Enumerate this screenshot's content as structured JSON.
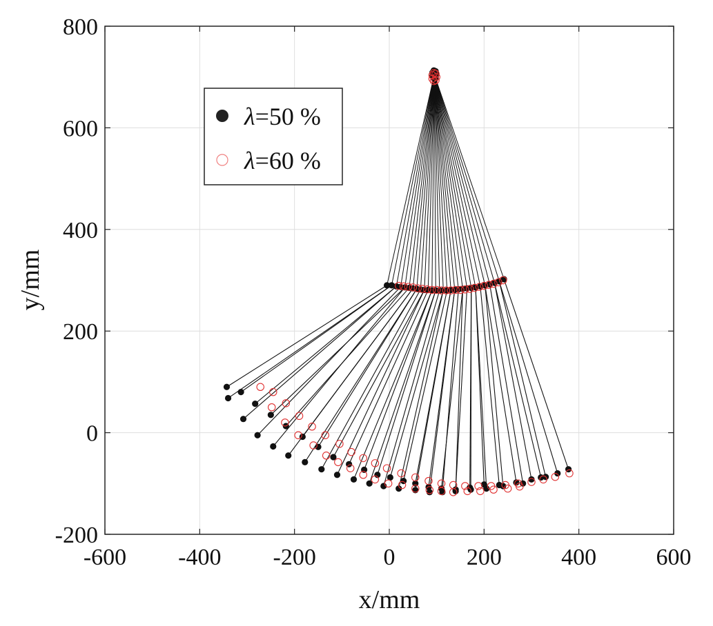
{
  "chart_data": {
    "type": "scatter",
    "xlabel": "x/mm",
    "ylabel": "y/mm",
    "xlim": [
      -600,
      600
    ],
    "ylim": [
      -200,
      800
    ],
    "xticks": [
      -600,
      -400,
      -200,
      0,
      200,
      400,
      600
    ],
    "yticks": [
      -200,
      0,
      200,
      400,
      600,
      800
    ],
    "xtick_labels": [
      "-600",
      "-400",
      "-200",
      "0",
      "200",
      "400",
      "600"
    ],
    "ytick_labels": [
      "-200",
      "0",
      "200",
      "400",
      "600",
      "800"
    ],
    "grid": true,
    "legend": {
      "placement": "upper-left",
      "entries": [
        {
          "symbol": "λ",
          "text": "=50 %"
        },
        {
          "symbol": "λ",
          "text": "=60 %"
        }
      ]
    },
    "series": [
      {
        "name": "λ=50 %",
        "color": "#111111",
        "marker": "filled-circle",
        "hip": {
          "x": 95,
          "y": 705
        },
        "knee": [
          {
            "x": -5,
            "y": 290
          },
          {
            "x": 5,
            "y": 290
          },
          {
            "x": 15,
            "y": 288
          },
          {
            "x": 24,
            "y": 287
          },
          {
            "x": 33,
            "y": 286
          },
          {
            "x": 42,
            "y": 285
          },
          {
            "x": 50,
            "y": 284
          },
          {
            "x": 58,
            "y": 283
          },
          {
            "x": 66,
            "y": 282
          },
          {
            "x": 74,
            "y": 281
          },
          {
            "x": 82,
            "y": 281
          },
          {
            "x": 90,
            "y": 280
          },
          {
            "x": 98,
            "y": 280
          },
          {
            "x": 106,
            "y": 280
          },
          {
            "x": 114,
            "y": 280
          },
          {
            "x": 122,
            "y": 280
          },
          {
            "x": 130,
            "y": 281
          },
          {
            "x": 138,
            "y": 281
          },
          {
            "x": 146,
            "y": 282
          },
          {
            "x": 155,
            "y": 283
          },
          {
            "x": 164,
            "y": 284
          },
          {
            "x": 173,
            "y": 285
          },
          {
            "x": 182,
            "y": 286
          },
          {
            "x": 192,
            "y": 288
          },
          {
            "x": 202,
            "y": 290
          },
          {
            "x": 212,
            "y": 292
          },
          {
            "x": 222,
            "y": 295
          },
          {
            "x": 232,
            "y": 298
          },
          {
            "x": 242,
            "y": 302
          }
        ],
        "foot": [
          {
            "x": -343,
            "y": 90
          },
          {
            "x": -340,
            "y": 68
          },
          {
            "x": -313,
            "y": 80
          },
          {
            "x": -308,
            "y": 27
          },
          {
            "x": -283,
            "y": 57
          },
          {
            "x": -278,
            "y": -5
          },
          {
            "x": -250,
            "y": 35
          },
          {
            "x": -245,
            "y": -27
          },
          {
            "x": -218,
            "y": 13
          },
          {
            "x": -213,
            "y": -45
          },
          {
            "x": -183,
            "y": -8
          },
          {
            "x": -178,
            "y": -58
          },
          {
            "x": -150,
            "y": -28
          },
          {
            "x": -143,
            "y": -72
          },
          {
            "x": -118,
            "y": -48
          },
          {
            "x": -110,
            "y": -83
          },
          {
            "x": -85,
            "y": -62
          },
          {
            "x": -75,
            "y": -92
          },
          {
            "x": -53,
            "y": -73
          },
          {
            "x": -42,
            "y": -100
          },
          {
            "x": -25,
            "y": -83
          },
          {
            "x": -12,
            "y": -105
          },
          {
            "x": 2,
            "y": -88
          },
          {
            "x": 20,
            "y": -110
          },
          {
            "x": 30,
            "y": -95
          },
          {
            "x": 55,
            "y": -113
          },
          {
            "x": 55,
            "y": -100
          },
          {
            "x": 85,
            "y": -117
          },
          {
            "x": 83,
            "y": -107
          },
          {
            "x": 112,
            "y": -117
          },
          {
            "x": 110,
            "y": -110
          },
          {
            "x": 140,
            "y": -115
          },
          {
            "x": 140,
            "y": -112
          },
          {
            "x": 170,
            "y": -108
          },
          {
            "x": 172,
            "y": -112
          },
          {
            "x": 200,
            "y": -102
          },
          {
            "x": 205,
            "y": -110
          },
          {
            "x": 232,
            "y": -103
          },
          {
            "x": 240,
            "y": -105
          },
          {
            "x": 268,
            "y": -98
          },
          {
            "x": 282,
            "y": -100
          },
          {
            "x": 300,
            "y": -92
          },
          {
            "x": 320,
            "y": -88
          },
          {
            "x": 330,
            "y": -87
          },
          {
            "x": 355,
            "y": -80
          },
          {
            "x": 378,
            "y": -72
          }
        ]
      },
      {
        "name": "λ=60 %",
        "color": "#e03030",
        "marker": "open-circle",
        "hip": {
          "x": 95,
          "y": 700
        },
        "knee": [
          {
            "x": 20,
            "y": 289
          },
          {
            "x": 30,
            "y": 288
          },
          {
            "x": 40,
            "y": 287
          },
          {
            "x": 50,
            "y": 286
          },
          {
            "x": 60,
            "y": 284
          },
          {
            "x": 70,
            "y": 283
          },
          {
            "x": 80,
            "y": 282
          },
          {
            "x": 90,
            "y": 281
          },
          {
            "x": 100,
            "y": 281
          },
          {
            "x": 110,
            "y": 280
          },
          {
            "x": 120,
            "y": 280
          },
          {
            "x": 130,
            "y": 280
          },
          {
            "x": 140,
            "y": 281
          },
          {
            "x": 150,
            "y": 281
          },
          {
            "x": 160,
            "y": 282
          },
          {
            "x": 170,
            "y": 283
          },
          {
            "x": 180,
            "y": 285
          },
          {
            "x": 190,
            "y": 287
          },
          {
            "x": 200,
            "y": 289
          },
          {
            "x": 210,
            "y": 291
          },
          {
            "x": 220,
            "y": 293
          },
          {
            "x": 230,
            "y": 296
          },
          {
            "x": 240,
            "y": 300
          }
        ],
        "foot": [
          {
            "x": -272,
            "y": 90
          },
          {
            "x": -245,
            "y": 80
          },
          {
            "x": -248,
            "y": 50
          },
          {
            "x": -218,
            "y": 58
          },
          {
            "x": -220,
            "y": 20
          },
          {
            "x": -190,
            "y": 33
          },
          {
            "x": -192,
            "y": -5
          },
          {
            "x": -163,
            "y": 12
          },
          {
            "x": -160,
            "y": -25
          },
          {
            "x": -135,
            "y": -5
          },
          {
            "x": -133,
            "y": -45
          },
          {
            "x": -105,
            "y": -22
          },
          {
            "x": -108,
            "y": -58
          },
          {
            "x": -80,
            "y": -38
          },
          {
            "x": -82,
            "y": -70
          },
          {
            "x": -55,
            "y": -50
          },
          {
            "x": -55,
            "y": -83
          },
          {
            "x": -30,
            "y": -60
          },
          {
            "x": -30,
            "y": -92
          },
          {
            "x": -5,
            "y": -70
          },
          {
            "x": -2,
            "y": -100
          },
          {
            "x": 25,
            "y": -80
          },
          {
            "x": 27,
            "y": -103
          },
          {
            "x": 55,
            "y": -88
          },
          {
            "x": 55,
            "y": -110
          },
          {
            "x": 83,
            "y": -95
          },
          {
            "x": 85,
            "y": -113
          },
          {
            "x": 110,
            "y": -100
          },
          {
            "x": 110,
            "y": -115
          },
          {
            "x": 135,
            "y": -103
          },
          {
            "x": 135,
            "y": -117
          },
          {
            "x": 160,
            "y": -105
          },
          {
            "x": 165,
            "y": -115
          },
          {
            "x": 188,
            "y": -105
          },
          {
            "x": 192,
            "y": -115
          },
          {
            "x": 215,
            "y": -105
          },
          {
            "x": 220,
            "y": -112
          },
          {
            "x": 245,
            "y": -103
          },
          {
            "x": 250,
            "y": -110
          },
          {
            "x": 272,
            "y": -100
          },
          {
            "x": 275,
            "y": -106
          },
          {
            "x": 300,
            "y": -97
          },
          {
            "x": 325,
            "y": -92
          },
          {
            "x": 350,
            "y": -87
          },
          {
            "x": 380,
            "y": -80
          }
        ]
      }
    ]
  }
}
